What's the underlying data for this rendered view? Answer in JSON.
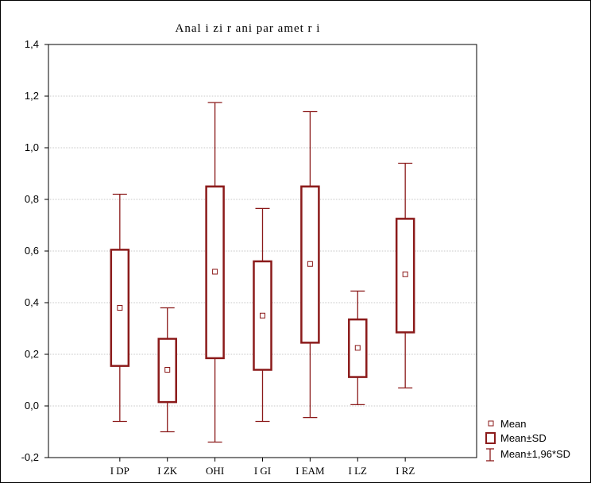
{
  "chart_data": {
    "type": "box",
    "title": "Anal i zi r ani  par amet r i",
    "xlabel": "",
    "ylabel": "",
    "ylim": [
      -0.2,
      1.4
    ],
    "yticks": [
      "-0,2",
      "0,0",
      "0,2",
      "0,4",
      "0,6",
      "0,8",
      "1,0",
      "1,2",
      "1,4"
    ],
    "ytick_values": [
      -0.2,
      0.0,
      0.2,
      0.4,
      0.6,
      0.8,
      1.0,
      1.2,
      1.4
    ],
    "grid": true,
    "categories": [
      "I DP",
      "I ZK",
      "OHI",
      "I GI",
      "I EAM",
      "I LZ",
      "I RZ"
    ],
    "mean": [
      0.38,
      0.14,
      0.52,
      0.35,
      0.55,
      0.225,
      0.51
    ],
    "sd_low": [
      0.155,
      0.015,
      0.185,
      0.14,
      0.245,
      0.112,
      0.285
    ],
    "sd_high": [
      0.605,
      0.26,
      0.85,
      0.56,
      0.85,
      0.335,
      0.725
    ],
    "whisker_low": [
      -0.06,
      -0.1,
      -0.14,
      -0.06,
      -0.045,
      0.005,
      0.07
    ],
    "whisker_high": [
      0.82,
      0.38,
      1.175,
      0.765,
      1.14,
      0.445,
      0.94
    ],
    "legend": {
      "placement": "bottom-right",
      "entries": [
        "Mean",
        "Mean±SD",
        "Mean±1,96*SD"
      ]
    },
    "colors": {
      "series": "#8b1a1a",
      "grid": "#c8c8c8",
      "axis": "#000000"
    }
  }
}
